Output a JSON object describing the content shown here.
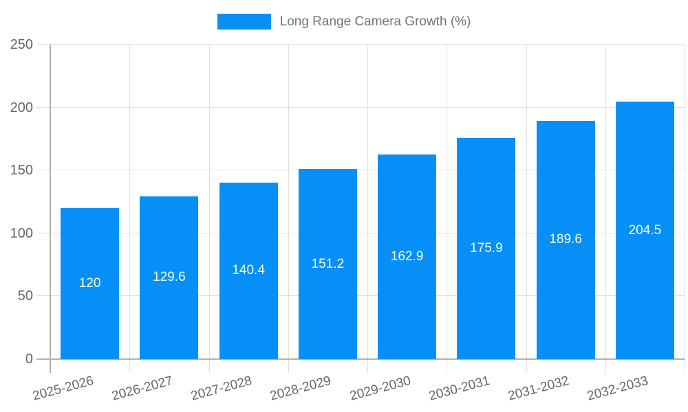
{
  "legend": {
    "items": [
      {
        "label": "Long Range Camera Growth (%)",
        "color": "#0690F7"
      }
    ]
  },
  "chart_data": {
    "type": "bar",
    "title": "Long Range Camera Growth (%)",
    "categories": [
      "2025-2026",
      "2026-2027",
      "2027-2028",
      "2028-2029",
      "2029-2030",
      "2030-2031",
      "2031-2032",
      "2032-2033"
    ],
    "series": [
      {
        "name": "Long Range Camera Growth (%)",
        "values": [
          120,
          129.6,
          140.4,
          151.2,
          162.9,
          175.9,
          189.6,
          204.5
        ]
      }
    ],
    "value_labels": [
      "120",
      "129.6",
      "140.4",
      "151.2",
      "162.9",
      "175.9",
      "189.6",
      "204.5"
    ],
    "xlabel": "",
    "ylabel": "",
    "ylim": [
      0,
      250
    ],
    "yticks": [
      0,
      50,
      100,
      150,
      200,
      250
    ],
    "grid": true,
    "legend_position": "top-center",
    "bar_color": "#0690F7",
    "colors": {
      "grid": "#e0e0e0",
      "axis": "#b0b0b0",
      "tick_text": "#666666",
      "legend_text": "#757575",
      "value_text": "#ffffff",
      "background": "#ffffff"
    }
  }
}
